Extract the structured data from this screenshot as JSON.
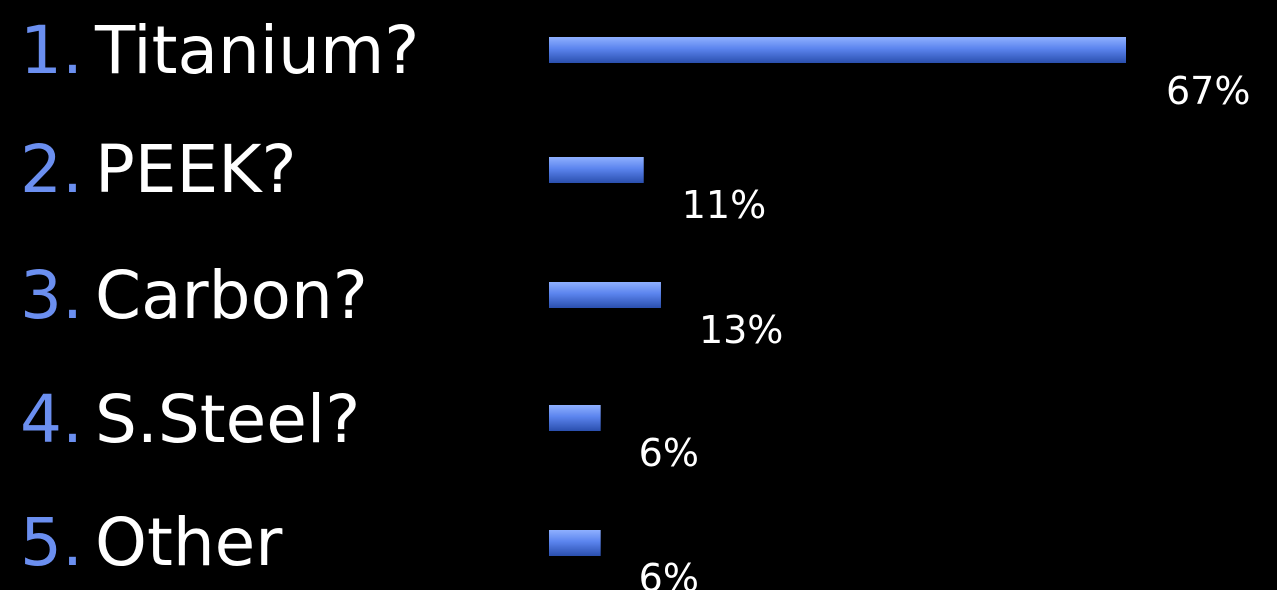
{
  "chart_data": {
    "type": "bar",
    "orientation": "horizontal",
    "categories": [
      "Titanium?",
      "PEEK?",
      "Carbon?",
      "S.Steel?",
      "Other"
    ],
    "numbers": [
      "1.",
      "2.",
      "3.",
      "4.",
      "5."
    ],
    "values": [
      67,
      11,
      13,
      6,
      6
    ],
    "value_labels": [
      "67%",
      "11%",
      "13%",
      "6%",
      "6%"
    ],
    "unit": "%",
    "xlim": [
      0,
      67
    ],
    "grid": false,
    "legend": "none"
  },
  "colors": {
    "background": "#000000",
    "bar": "#5b84ee",
    "bar_dark": "#2a4fae",
    "number": "#6b8ff0",
    "label": "#ffffff"
  }
}
